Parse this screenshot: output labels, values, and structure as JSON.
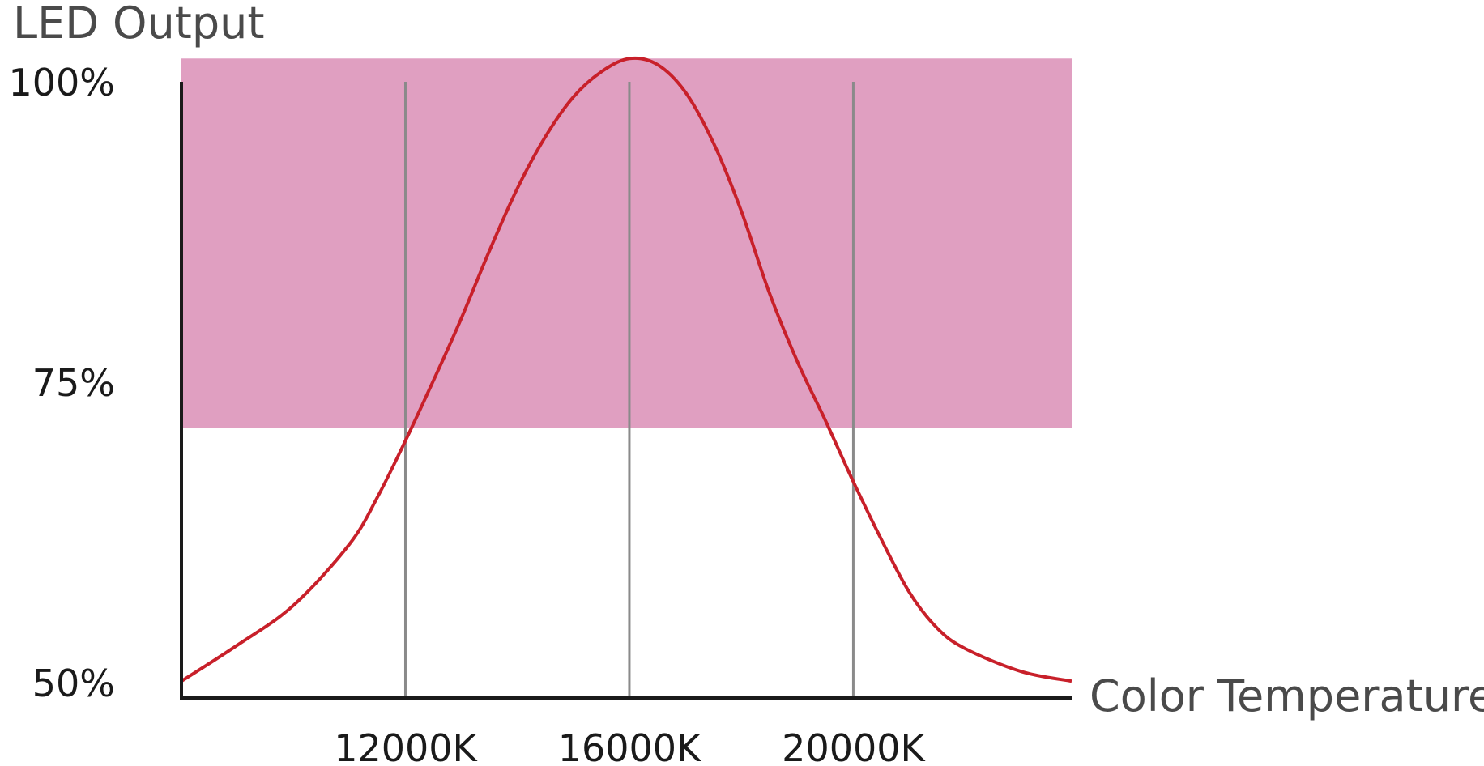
{
  "chart_data": {
    "type": "line",
    "ylabel": "LED Output",
    "xlabel": "Color Temperature",
    "x_ticks": [
      {
        "value": 12000,
        "label": "12000K"
      },
      {
        "value": 16000,
        "label": "16000K"
      },
      {
        "value": 20000,
        "label": "20000K"
      }
    ],
    "y_ticks": [
      {
        "value": 50,
        "label": "50%"
      },
      {
        "value": 75,
        "label": "75%"
      },
      {
        "value": 100,
        "label": "100%"
      }
    ],
    "xlim": [
      8000,
      23900
    ],
    "ylim": [
      48.8,
      103.5
    ],
    "highlight_band": {
      "x_from": 8000,
      "x_to": 23900,
      "y_from": 71.3,
      "y_to": 102,
      "color": "#e09fc1"
    },
    "gridlines_x": [
      12000,
      16000,
      20000
    ],
    "series": [
      {
        "color": "#c8202a",
        "x": [
          8000,
          9000,
          10000,
          11000,
          11500,
          12000,
          12500,
          13000,
          13500,
          14000,
          14500,
          15000,
          15500,
          16000,
          16500,
          17000,
          17500,
          18000,
          18500,
          19000,
          19500,
          20000,
          20500,
          21000,
          21500,
          22000,
          23000,
          23900
        ],
        "y": [
          50.2,
          53.2,
          56.5,
          61.6,
          65.5,
          70.2,
          75.2,
          80.4,
          86.0,
          91.2,
          95.5,
          98.8,
          100.9,
          102.0,
          101.5,
          99.2,
          95.0,
          89.3,
          82.5,
          76.8,
          71.9,
          66.8,
          62.0,
          57.6,
          54.6,
          52.9,
          51.0,
          50.2
        ]
      }
    ]
  },
  "colors": {
    "axis": "#1a1a1a",
    "grid": "#8a8a8a",
    "band": "#e09fc1",
    "line": "#c8202a"
  }
}
